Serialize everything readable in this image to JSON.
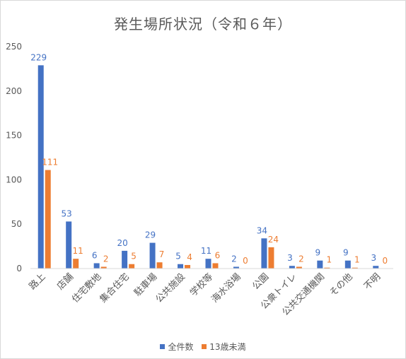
{
  "chart_data": {
    "type": "bar",
    "title": "発生場所状況（令和６年）",
    "xlabel": "",
    "ylabel": "",
    "ylim": [
      0,
      250
    ],
    "yticks": [
      0,
      50,
      100,
      150,
      200,
      250
    ],
    "grid": false,
    "legend_position": "bottom",
    "categories": [
      "路上",
      "店舗",
      "住宅敷地",
      "集合住宅",
      "駐車場",
      "公共施設",
      "学校等",
      "海水浴場",
      "公園",
      "公衆トイレ",
      "公共交通機関",
      "その他",
      "不明"
    ],
    "series": [
      {
        "name": "全件数",
        "color": "#4472c4",
        "values": [
          229,
          53,
          6,
          20,
          29,
          5,
          11,
          2,
          34,
          3,
          9,
          9,
          3
        ]
      },
      {
        "name": "13歳未満",
        "color": "#ed7d31",
        "values": [
          111,
          11,
          2,
          5,
          7,
          4,
          6,
          0,
          24,
          2,
          1,
          1,
          0
        ]
      }
    ]
  }
}
